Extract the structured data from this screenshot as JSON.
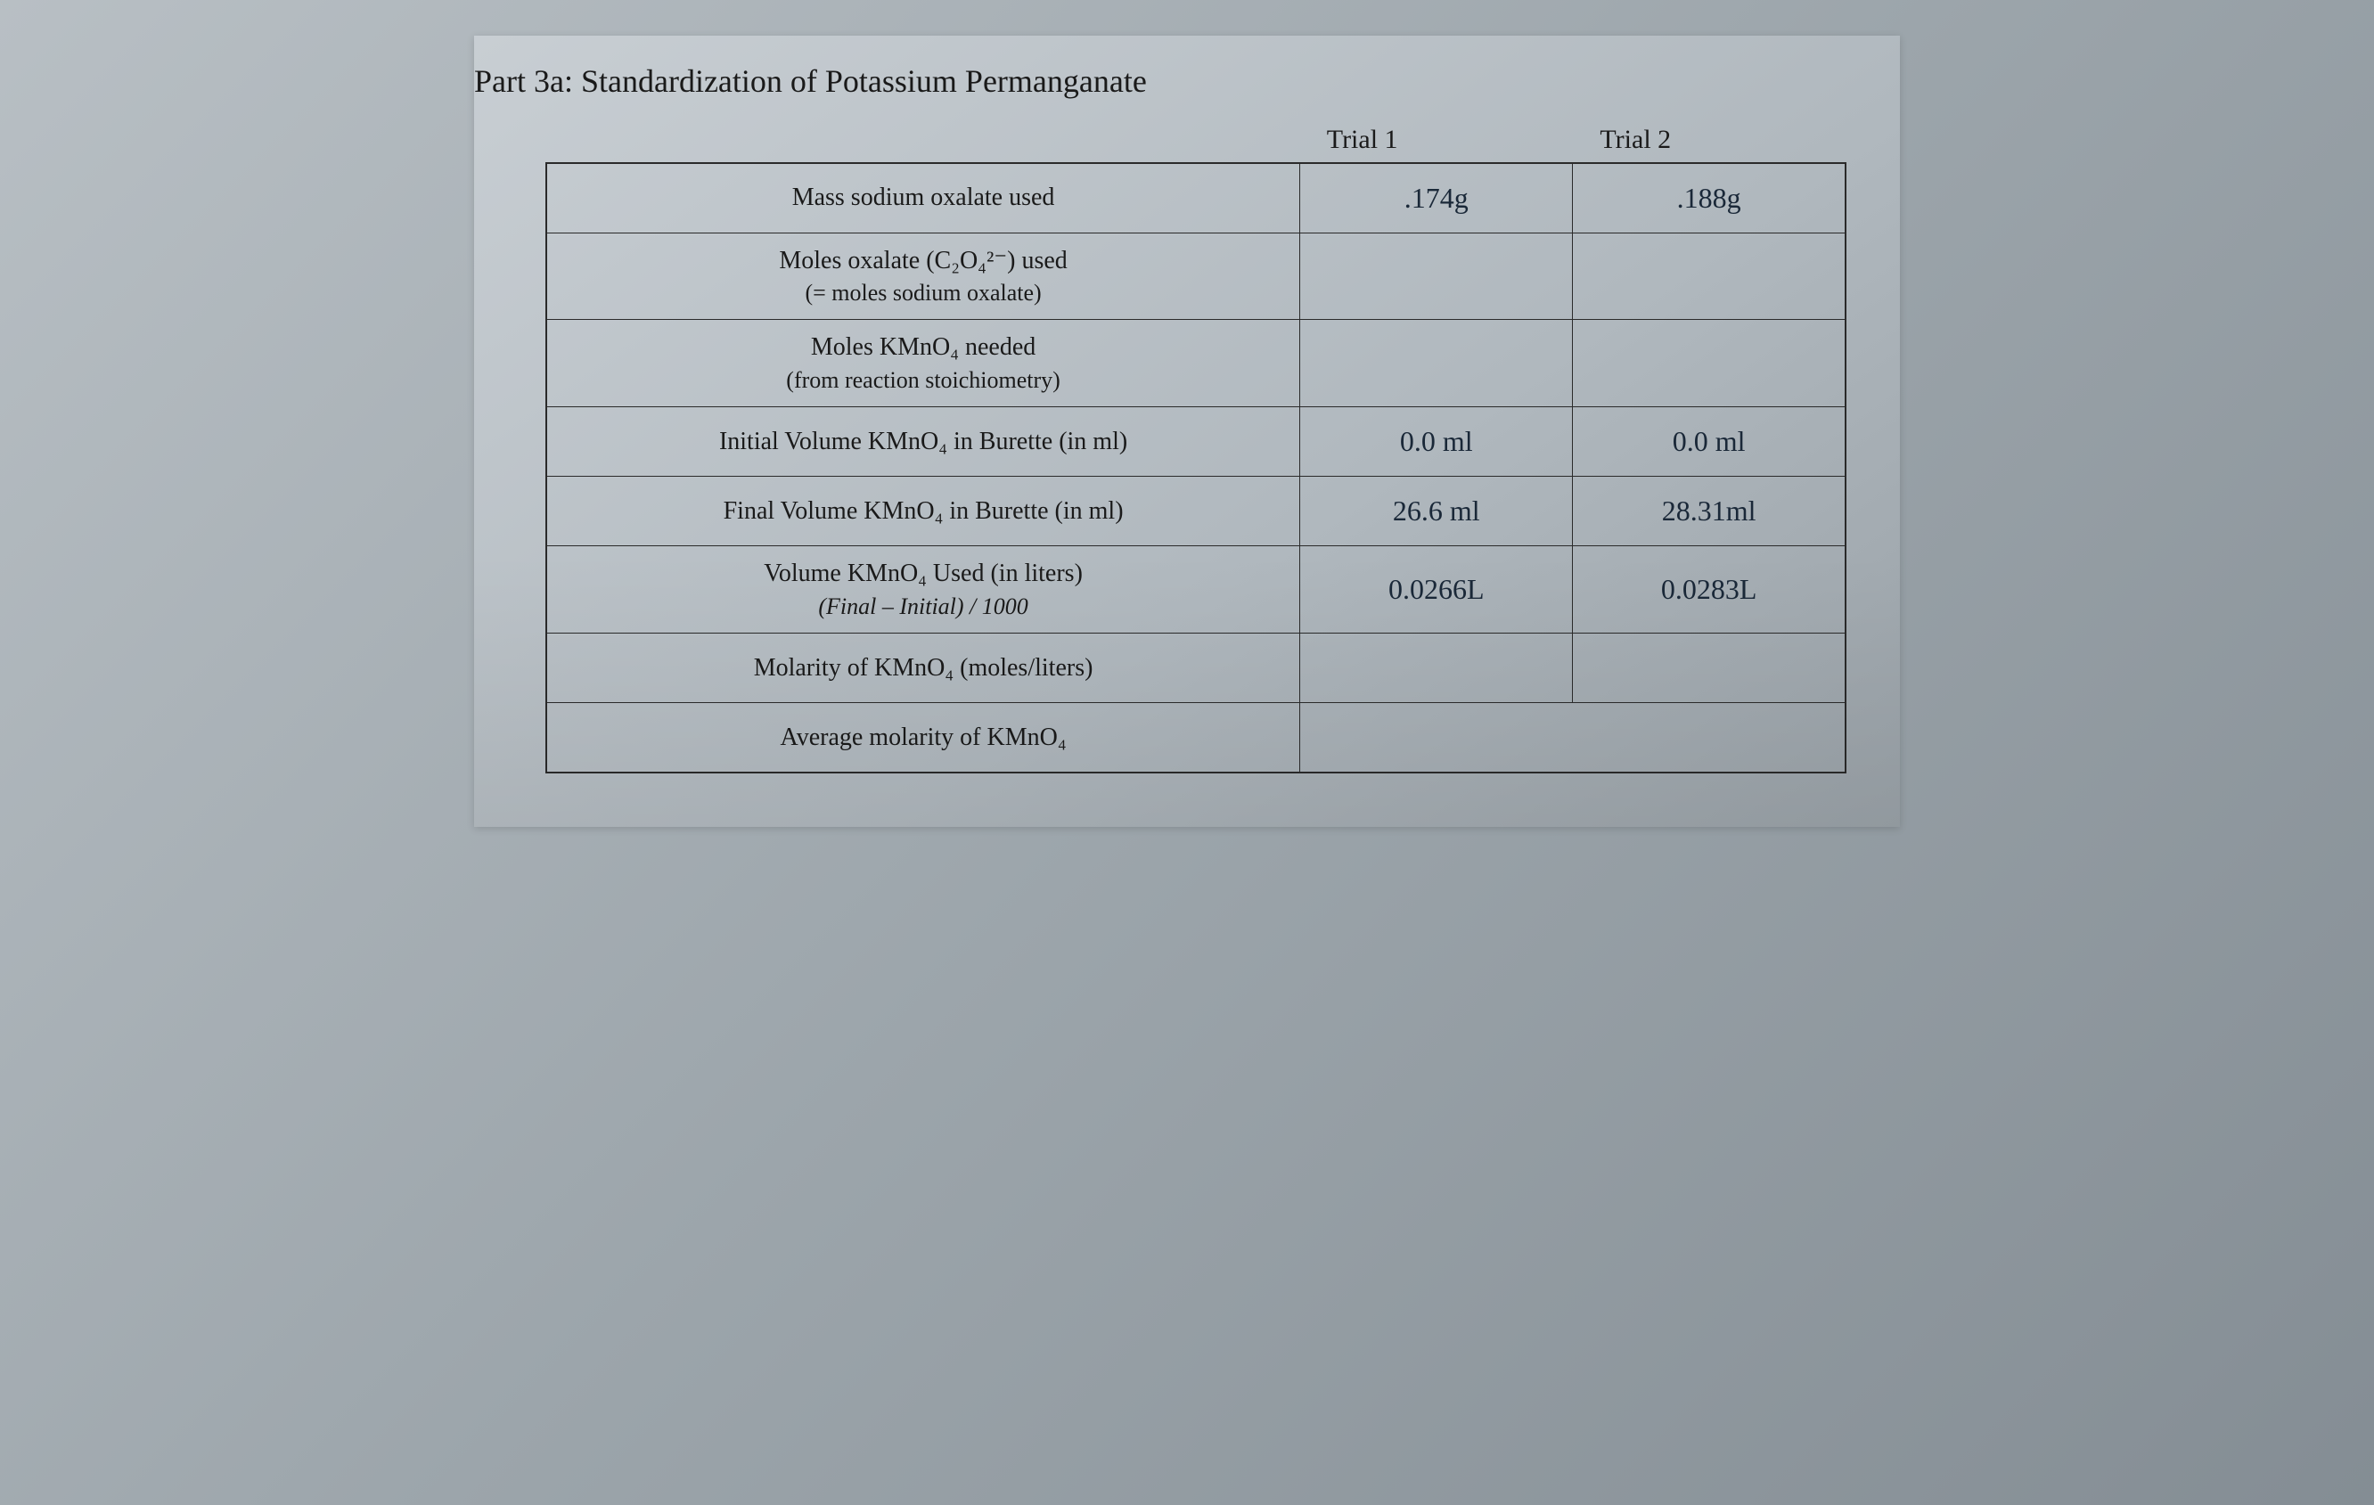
{
  "title": "Part 3a: Standardization of Potassium Permanganate",
  "headers": {
    "trial1": "Trial 1",
    "trial2": "Trial 2"
  },
  "rows": {
    "mass_sodium_oxalate": {
      "label": "Mass sodium oxalate used",
      "trial1": ".174g",
      "trial2": ".188g"
    },
    "moles_oxalate": {
      "label_line1": "Moles oxalate (C₂O₄²⁻) used",
      "label_line2": "(= moles sodium oxalate)",
      "trial1": "",
      "trial2": ""
    },
    "moles_kmno4": {
      "label_line1": "Moles KMnO₄ needed",
      "label_line2": "(from reaction stoichiometry)",
      "trial1": "",
      "trial2": ""
    },
    "initial_volume": {
      "label": "Initial Volume KMnO₄ in Burette (in ml)",
      "trial1": "0.0 ml",
      "trial2": "0.0 ml"
    },
    "final_volume": {
      "label": "Final Volume KMnO₄ in Burette (in ml)",
      "trial1": "26.6 ml",
      "trial2": "28.31ml"
    },
    "volume_used": {
      "label_line1": "Volume KMnO₄ Used (in liters)",
      "label_line2": "(Final – Initial) / 1000",
      "trial1": "0.0266L",
      "trial2": "0.0283L"
    },
    "molarity": {
      "label": "Molarity of KMnO₄ (moles/liters)",
      "trial1": "",
      "trial2": ""
    },
    "avg_molarity": {
      "label": "Average molarity of KMnO₄",
      "value": ""
    }
  },
  "style": {
    "background_gradient": [
      "#c8ced3",
      "#b0b8be",
      "#9aa2a8"
    ],
    "border_color": "#2a2a2a",
    "printed_text_color": "#1a1a1a",
    "handwritten_text_color": "#1a2838",
    "title_fontsize": 36,
    "label_fontsize": 28,
    "data_fontsize": 32,
    "printed_font": "Times New Roman",
    "handwritten_font": "Comic Sans MS"
  }
}
